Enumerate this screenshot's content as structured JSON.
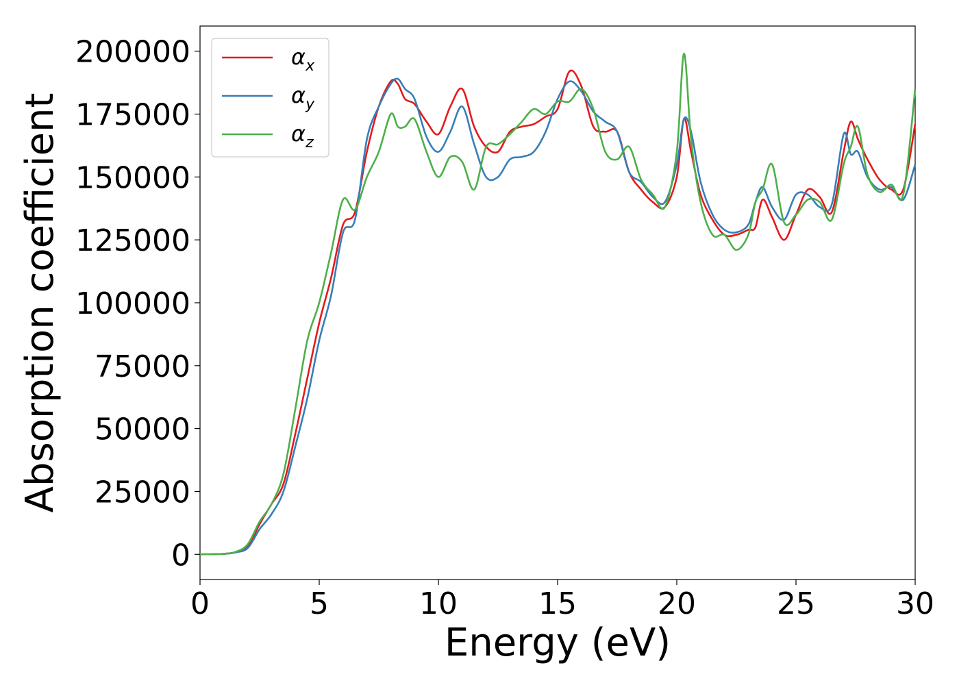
{
  "chart_data": {
    "type": "line",
    "title": "",
    "xlabel": "Energy (eV)",
    "ylabel": "Absorption coefficient",
    "xlim": [
      0,
      30
    ],
    "ylim": [
      -10000,
      210000
    ],
    "xticks": [
      0,
      5,
      10,
      15,
      20,
      25,
      30
    ],
    "yticks": [
      0,
      25000,
      50000,
      75000,
      100000,
      125000,
      150000,
      175000,
      200000
    ],
    "xtick_labels": [
      "0",
      "5",
      "10",
      "15",
      "20",
      "25",
      "30"
    ],
    "ytick_labels": [
      "0",
      "25000",
      "50000",
      "75000",
      "100000",
      "125000",
      "150000",
      "175000",
      "200000"
    ],
    "grid": false,
    "legend_position": "top-left",
    "series": [
      {
        "name": "αx",
        "symbol": "α",
        "subscript": "x",
        "color": "#e41a1c",
        "x": [
          0,
          1,
          1.5,
          2,
          2.5,
          3,
          3.5,
          4,
          4.5,
          5,
          5.5,
          6,
          6.5,
          7,
          7.5,
          8,
          8.3,
          8.6,
          9,
          9.5,
          10,
          10.5,
          11,
          11.5,
          12,
          12.5,
          13,
          13.5,
          14,
          14.5,
          15,
          15.5,
          16,
          16.5,
          17,
          17.5,
          18,
          18.5,
          19,
          19.5,
          20,
          20.3,
          20.6,
          21,
          21.5,
          22,
          22.5,
          23,
          23.3,
          23.6,
          24,
          24.5,
          25,
          25.5,
          26,
          26.5,
          27,
          27.3,
          27.6,
          28,
          28.5,
          29,
          29.5,
          30
        ],
        "y": [
          0,
          200,
          800,
          3000,
          12000,
          20000,
          28000,
          48000,
          70000,
          92000,
          110000,
          131000,
          136000,
          160000,
          178000,
          188000,
          187000,
          181000,
          179000,
          172000,
          167000,
          178000,
          185000,
          170000,
          162000,
          160000,
          168000,
          170000,
          171000,
          174000,
          177000,
          192000,
          186000,
          170000,
          168000,
          168000,
          152000,
          145000,
          140000,
          138000,
          150000,
          173000,
          160000,
          143000,
          133000,
          127000,
          127000,
          129000,
          130000,
          141000,
          134000,
          125000,
          135000,
          145000,
          142000,
          136000,
          160000,
          172000,
          165000,
          157000,
          149000,
          145000,
          145000,
          171000
        ]
      },
      {
        "name": "αy",
        "symbol": "α",
        "subscript": "y",
        "color": "#377eb8",
        "x": [
          0,
          1,
          1.5,
          2,
          2.5,
          3,
          3.5,
          4,
          4.5,
          5,
          5.5,
          6,
          6.5,
          7,
          7.5,
          8,
          8.3,
          8.6,
          9,
          9.5,
          10,
          10.5,
          11,
          11.5,
          12,
          12.5,
          13,
          13.5,
          14,
          14.5,
          15,
          15.5,
          16,
          16.5,
          17,
          17.5,
          18,
          18.5,
          19,
          19.5,
          20,
          20.3,
          20.6,
          21,
          21.5,
          22,
          22.5,
          23,
          23.3,
          23.6,
          24,
          24.5,
          25,
          25.5,
          26,
          26.5,
          27,
          27.3,
          27.6,
          28,
          28.5,
          29,
          29.5,
          30
        ],
        "y": [
          0,
          200,
          800,
          2500,
          10000,
          16000,
          25000,
          43000,
          62000,
          85000,
          103000,
          128000,
          133000,
          165000,
          178000,
          187000,
          189000,
          185000,
          181000,
          166000,
          160000,
          168000,
          178000,
          163000,
          150000,
          150000,
          157000,
          158000,
          160000,
          168000,
          181000,
          188000,
          184000,
          176000,
          172000,
          168000,
          152000,
          148000,
          142000,
          140000,
          155000,
          173000,
          168000,
          148000,
          135000,
          129000,
          128000,
          131000,
          140000,
          146000,
          138000,
          133000,
          143000,
          143000,
          138000,
          139000,
          167000,
          159000,
          160000,
          150000,
          145000,
          146000,
          141000,
          155000
        ]
      },
      {
        "name": "αz",
        "symbol": "α",
        "subscript": "z",
        "color": "#4daf4a",
        "x": [
          0,
          1,
          1.5,
          2,
          2.5,
          3,
          3.5,
          4,
          4.5,
          5,
          5.5,
          6,
          6.5,
          7,
          7.5,
          8,
          8.3,
          8.6,
          9,
          9.5,
          10,
          10.5,
          11,
          11.5,
          12,
          12.5,
          13,
          13.5,
          14,
          14.5,
          15,
          15.5,
          16,
          16.5,
          17,
          17.5,
          18,
          18.5,
          19,
          19.5,
          20,
          20.3,
          20.6,
          21,
          21.5,
          22,
          22.5,
          23,
          23.3,
          23.6,
          24,
          24.5,
          25,
          25.5,
          26,
          26.5,
          27,
          27.3,
          27.6,
          28,
          28.5,
          29,
          29.5,
          30
        ],
        "y": [
          0,
          200,
          1000,
          4000,
          13000,
          20000,
          32000,
          58000,
          85000,
          100000,
          120000,
          141000,
          137000,
          150000,
          160000,
          175000,
          170000,
          170000,
          173000,
          160000,
          150000,
          158000,
          156000,
          145000,
          162000,
          163000,
          167000,
          172000,
          177000,
          175000,
          180000,
          180000,
          185000,
          177000,
          160000,
          157000,
          162000,
          149000,
          143000,
          138000,
          160000,
          199000,
          165000,
          140000,
          127000,
          127000,
          121000,
          127000,
          140000,
          145000,
          155000,
          132000,
          135000,
          141000,
          140000,
          133000,
          155000,
          162000,
          170000,
          151000,
          144000,
          147000,
          143000,
          185000
        ]
      }
    ]
  }
}
